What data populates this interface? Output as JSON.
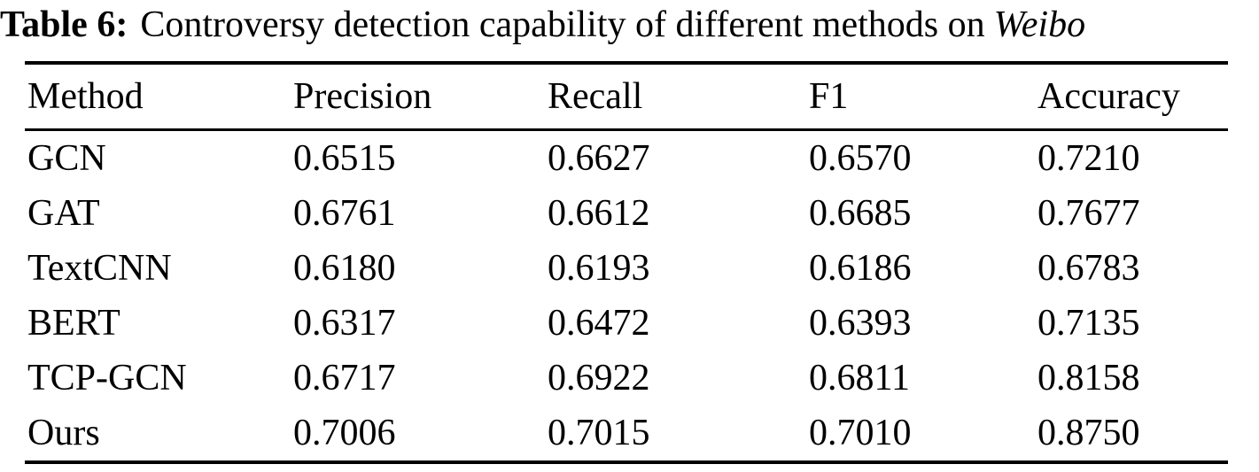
{
  "caption": {
    "label": "Table 6:",
    "text": "Controversy detection capability of different methods on",
    "dataset": "Weibo"
  },
  "colors": {
    "text": "#000000",
    "background": "#ffffff",
    "rule": "#000000"
  },
  "table": {
    "columns": [
      "Method",
      "Precision",
      "Recall",
      "F1",
      "Accuracy"
    ],
    "rows": [
      {
        "method": "GCN",
        "values": [
          "0.6515",
          "0.6627",
          "0.6570",
          "0.7210"
        ]
      },
      {
        "method": "GAT",
        "values": [
          "0.6761",
          "0.6612",
          "0.6685",
          "0.7677"
        ]
      },
      {
        "method": "TextCNN",
        "values": [
          "0.6180",
          "0.6193",
          "0.6186",
          "0.6783"
        ]
      },
      {
        "method": "BERT",
        "values": [
          "0.6317",
          "0.6472",
          "0.6393",
          "0.7135"
        ]
      },
      {
        "method": "TCP-GCN",
        "values": [
          "0.6717",
          "0.6922",
          "0.6811",
          "0.8158"
        ]
      },
      {
        "method": "Ours",
        "values": [
          "0.7006",
          "0.7015",
          "0.7010",
          "0.8750"
        ]
      }
    ]
  }
}
